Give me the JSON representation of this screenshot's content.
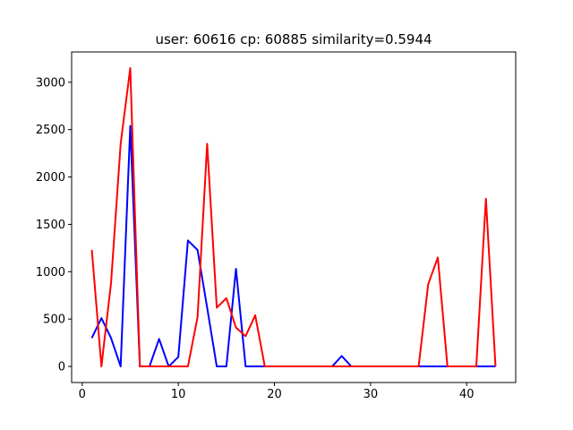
{
  "chart_data": {
    "type": "line",
    "title": "user: 60616  cp: 60885  similarity=0.5944",
    "xlabel": "",
    "ylabel": "",
    "xlim": [
      -1.1,
      45.1
    ],
    "ylim": [
      -170,
      3320
    ],
    "x_ticks": [
      0,
      10,
      20,
      30,
      40
    ],
    "y_ticks": [
      0,
      500,
      1000,
      1500,
      2000,
      2500,
      3000
    ],
    "grid": false,
    "legend": "none",
    "x": [
      1,
      2,
      3,
      4,
      5,
      6,
      7,
      8,
      9,
      10,
      11,
      12,
      13,
      14,
      15,
      16,
      17,
      18,
      19,
      20,
      21,
      22,
      23,
      24,
      25,
      26,
      27,
      28,
      29,
      30,
      31,
      32,
      33,
      34,
      35,
      36,
      37,
      38,
      39,
      40,
      41,
      42,
      43
    ],
    "series": [
      {
        "color": "#0000ff",
        "values": [
          300,
          510,
          300,
          0,
          2540,
          0,
          0,
          290,
          0,
          100,
          1330,
          1230,
          620,
          0,
          0,
          1030,
          0,
          0,
          0,
          0,
          0,
          0,
          0,
          0,
          0,
          0,
          110,
          0,
          0,
          0,
          0,
          0,
          0,
          0,
          0,
          0,
          0,
          0,
          0,
          0,
          0,
          0,
          0
        ]
      },
      {
        "color": "#ff0000",
        "values": [
          1230,
          0,
          880,
          2350,
          3150,
          0,
          0,
          0,
          0,
          0,
          0,
          520,
          2350,
          620,
          720,
          410,
          320,
          540,
          0,
          0,
          0,
          0,
          0,
          0,
          0,
          0,
          0,
          0,
          0,
          0,
          0,
          0,
          0,
          0,
          0,
          870,
          1150,
          0,
          0,
          0,
          0,
          1770,
          0
        ]
      }
    ]
  }
}
